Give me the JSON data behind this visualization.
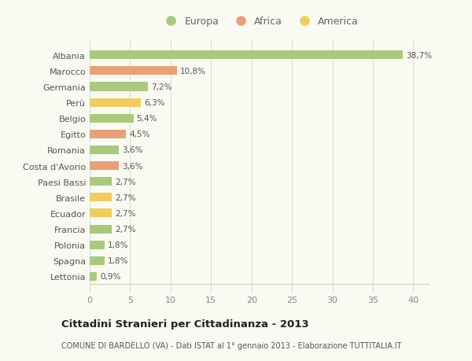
{
  "categories": [
    "Lettonia",
    "Spagna",
    "Polonia",
    "Francia",
    "Ecuador",
    "Brasile",
    "Paesi Bassi",
    "Costa d'Avorio",
    "Romania",
    "Egitto",
    "Belgio",
    "Perù",
    "Germania",
    "Marocco",
    "Albania"
  ],
  "values": [
    0.9,
    1.8,
    1.8,
    2.7,
    2.7,
    2.7,
    2.7,
    3.6,
    3.6,
    4.5,
    5.4,
    6.3,
    7.2,
    10.8,
    38.7
  ],
  "continents": [
    "Europa",
    "Europa",
    "Europa",
    "Europa",
    "America",
    "America",
    "Europa",
    "Africa",
    "Europa",
    "Africa",
    "Europa",
    "America",
    "Europa",
    "Africa",
    "Europa"
  ],
  "labels": [
    "0,9%",
    "1,8%",
    "1,8%",
    "2,7%",
    "2,7%",
    "2,7%",
    "2,7%",
    "3,6%",
    "3,6%",
    "4,5%",
    "5,4%",
    "6,3%",
    "7,2%",
    "10,8%",
    "38,7%"
  ],
  "colors": {
    "Europa": "#a8c97f",
    "Africa": "#e8a07a",
    "America": "#f0cc60"
  },
  "legend_labels": [
    "Europa",
    "Africa",
    "America"
  ],
  "legend_colors": [
    "#a8c97f",
    "#e8a07a",
    "#f0cc60"
  ],
  "title": "Cittadini Stranieri per Cittadinanza - 2013",
  "subtitle": "COMUNE DI BARDELLO (VA) - Dati ISTAT al 1° gennaio 2013 - Elaborazione TUTTITALIA.IT",
  "xlim": [
    0,
    42
  ],
  "xticks": [
    0,
    5,
    10,
    15,
    20,
    25,
    30,
    35,
    40
  ],
  "background_color": "#fafaf2",
  "grid_color": "#ddddcc",
  "bar_height": 0.55
}
